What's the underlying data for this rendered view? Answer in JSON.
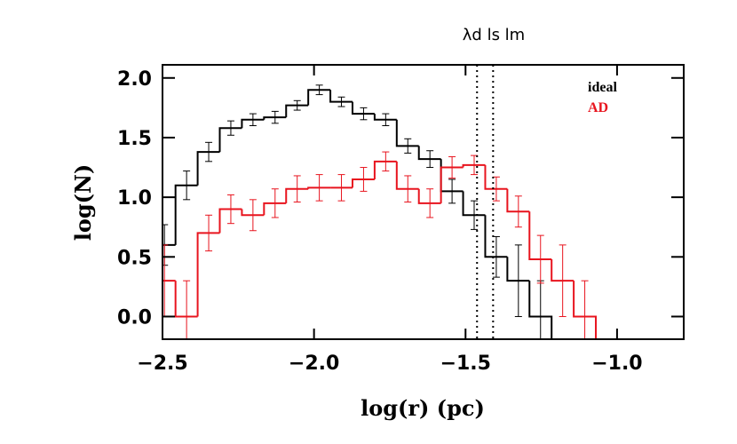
{
  "chart_data": {
    "type": "histogram",
    "xlabel": "log(r) (pc)",
    "ylabel": "log(N)",
    "bins": [
      -2.53,
      -2.457,
      -2.384,
      -2.311,
      -2.238,
      -2.165,
      -2.092,
      -2.019,
      -1.946,
      -1.873,
      -1.8,
      -1.727,
      -1.654,
      -1.581,
      -1.508,
      -1.435,
      -1.362,
      -1.289,
      -1.216,
      -1.143,
      -1.07
    ],
    "series": [
      {
        "name": "ideal",
        "color": "#000000",
        "values": [
          0.6,
          1.1,
          1.38,
          1.58,
          1.65,
          1.67,
          1.77,
          1.9,
          1.8,
          1.7,
          1.65,
          1.43,
          1.32,
          1.05,
          0.85,
          0.5,
          0.3,
          0.0,
          null,
          null
        ],
        "errors": [
          0.17,
          0.12,
          0.08,
          0.06,
          0.05,
          0.05,
          0.04,
          0.04,
          0.04,
          0.05,
          0.05,
          0.06,
          0.07,
          0.1,
          0.12,
          0.17,
          0.3,
          0.3,
          null,
          null
        ]
      },
      {
        "name": "AD",
        "color": "#e8141e",
        "values": [
          0.3,
          0.0,
          0.7,
          0.9,
          0.85,
          0.95,
          1.07,
          1.08,
          1.08,
          1.15,
          1.3,
          1.07,
          0.95,
          1.25,
          1.27,
          1.07,
          0.88,
          0.48,
          0.3,
          0.0
        ],
        "errors": [
          0.3,
          0.3,
          0.15,
          0.12,
          0.13,
          0.12,
          0.11,
          0.11,
          0.11,
          0.1,
          0.08,
          0.11,
          0.12,
          0.09,
          0.08,
          0.1,
          0.13,
          0.2,
          0.3,
          0.3
        ]
      }
    ],
    "vlines": [
      -1.462,
      -1.409
    ],
    "annotation": "λd ls lm",
    "xlim": [
      -2.5,
      -0.78
    ],
    "ylim": [
      -0.19,
      2.11
    ],
    "xticks": [
      {
        "value": -2.5,
        "label": "−2.5"
      },
      {
        "value": -2.0,
        "label": "−2.0"
      },
      {
        "value": -1.5,
        "label": "−1.5"
      },
      {
        "value": -1.0,
        "label": "−1.0"
      }
    ],
    "yticks": [
      {
        "value": 0,
        "label": "0.0"
      },
      {
        "value": 0.5,
        "label": "0.5"
      },
      {
        "value": 1.0,
        "label": "1.0"
      },
      {
        "value": 1.5,
        "label": "1.5"
      },
      {
        "value": 2.0,
        "label": "2.0"
      }
    ],
    "legend": "upper right"
  }
}
